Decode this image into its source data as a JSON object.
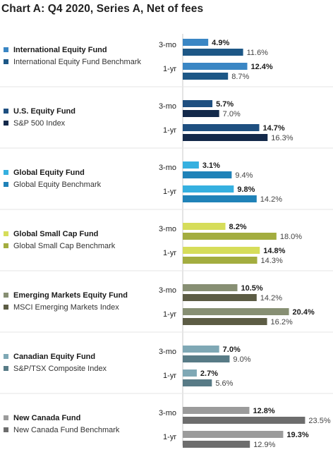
{
  "chart_data": {
    "type": "bar",
    "orientation": "horizontal",
    "title": "Chart A: Q4 2020, Series A, Net of fees",
    "period_labels": [
      "3-mo",
      "1-yr"
    ],
    "value_suffix": "%",
    "groups": [
      {
        "fund": {
          "name": "International Equity Fund",
          "color": "#3a86c4",
          "values": [
            4.9,
            12.4
          ]
        },
        "benchmark": {
          "name": "International Equity Fund Benchmark",
          "color": "#1d5786",
          "values": [
            11.6,
            8.7
          ]
        }
      },
      {
        "fund": {
          "name": "U.S. Equity Fund",
          "color": "#1e4f80",
          "values": [
            5.7,
            14.7
          ]
        },
        "benchmark": {
          "name": "S&P 500 Index",
          "color": "#13294a",
          "values": [
            7.0,
            16.3
          ]
        }
      },
      {
        "fund": {
          "name": "Global Equity Fund",
          "color": "#35b0e0",
          "values": [
            3.1,
            9.8
          ]
        },
        "benchmark": {
          "name": "Global Equity Benchmark",
          "color": "#1f82b8",
          "values": [
            9.4,
            14.2
          ]
        }
      },
      {
        "fund": {
          "name": "Global Small Cap Fund",
          "color": "#d6dd5a",
          "values": [
            8.2,
            14.8
          ]
        },
        "benchmark": {
          "name": "Global Small Cap Benchmark",
          "color": "#a3ad3f",
          "values": [
            18.0,
            14.3
          ]
        }
      },
      {
        "fund": {
          "name": "Emerging Markets Equity Fund",
          "color": "#878f73",
          "values": [
            10.5,
            20.4
          ]
        },
        "benchmark": {
          "name": "MSCI Emerging Markets Index",
          "color": "#5c5c44",
          "values": [
            14.2,
            16.2
          ]
        }
      },
      {
        "fund": {
          "name": "Canadian Equity Fund",
          "color": "#7fa8b5",
          "values": [
            7.0,
            2.7
          ]
        },
        "benchmark": {
          "name": "S&P/TSX Composite Index",
          "color": "#587b86",
          "values": [
            9.0,
            5.6
          ]
        }
      },
      {
        "fund": {
          "name": "New Canada Fund",
          "color": "#9b9b9b",
          "values": [
            12.8,
            19.3
          ]
        },
        "benchmark": {
          "name": "New Canada Fund Benchmark",
          "color": "#6d6d6d",
          "values": [
            23.5,
            12.9
          ]
        }
      }
    ]
  }
}
